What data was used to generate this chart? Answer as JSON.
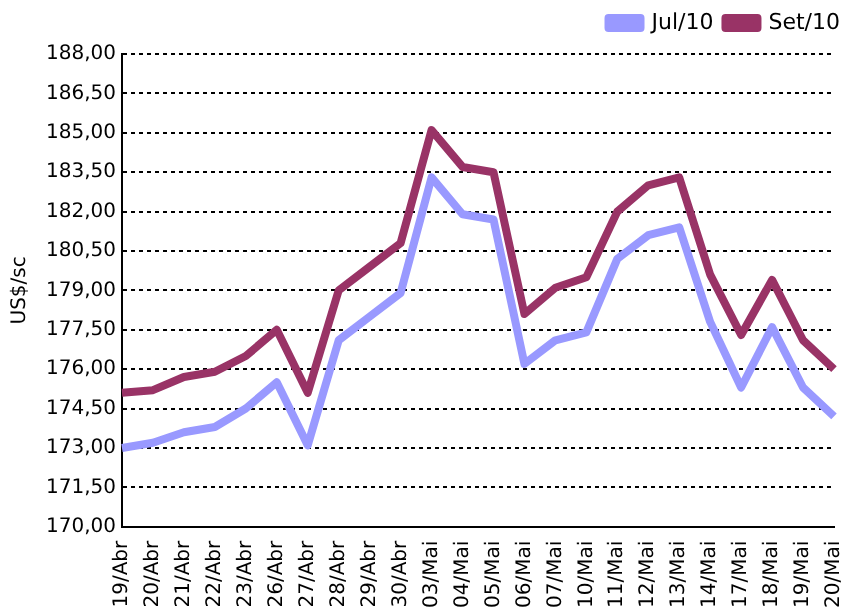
{
  "chart_data": {
    "type": "line",
    "ylabel": "US$/sc",
    "categories": [
      "19/Abr",
      "20/Abr",
      "21/Abr",
      "22/Abr",
      "23/Abr",
      "26/Abr",
      "27/Abr",
      "28/Abr",
      "29/Abr",
      "30/Abr",
      "03/Mai",
      "04/Mai",
      "05/Mai",
      "06/Mai",
      "07/Mai",
      "10/Mai",
      "11/Mai",
      "12/Mai",
      "13/Mai",
      "14/Mai",
      "17/Mai",
      "18/Mai",
      "19/Mai",
      "20/Mai"
    ],
    "series": [
      {
        "name": "Jul/10",
        "color": "#9999ff",
        "values": [
          173.0,
          173.2,
          173.6,
          173.8,
          174.5,
          175.5,
          173.1,
          177.1,
          178.0,
          178.9,
          183.3,
          181.9,
          181.7,
          176.2,
          177.1,
          177.4,
          180.2,
          181.1,
          181.4,
          177.8,
          175.3,
          177.6,
          175.3,
          174.2
        ]
      },
      {
        "name": "Set/10",
        "color": "#993366",
        "values": [
          175.1,
          175.2,
          175.7,
          175.9,
          176.5,
          177.5,
          175.1,
          179.0,
          179.9,
          180.8,
          185.1,
          183.7,
          183.5,
          178.1,
          179.1,
          179.5,
          182.0,
          183.0,
          183.3,
          179.6,
          177.3,
          179.4,
          177.1,
          176.0
        ]
      }
    ],
    "ylim": [
      170,
      188
    ],
    "yticks": [
      {
        "value": 170,
        "label": "170,00"
      },
      {
        "value": 171.5,
        "label": "171,50"
      },
      {
        "value": 173,
        "label": "173,00"
      },
      {
        "value": 174.5,
        "label": "174,50"
      },
      {
        "value": 176,
        "label": "176,00"
      },
      {
        "value": 177.5,
        "label": "177,50"
      },
      {
        "value": 179,
        "label": "179,00"
      },
      {
        "value": 180.5,
        "label": "180,50"
      },
      {
        "value": 182,
        "label": "182,00"
      },
      {
        "value": 183.5,
        "label": "183,50"
      },
      {
        "value": 185,
        "label": "185,00"
      },
      {
        "value": 186.5,
        "label": "186,50"
      },
      {
        "value": 188,
        "label": "188,00"
      }
    ],
    "grid": "y",
    "legend": "top right",
    "marker": "none",
    "line_style": "solid"
  }
}
